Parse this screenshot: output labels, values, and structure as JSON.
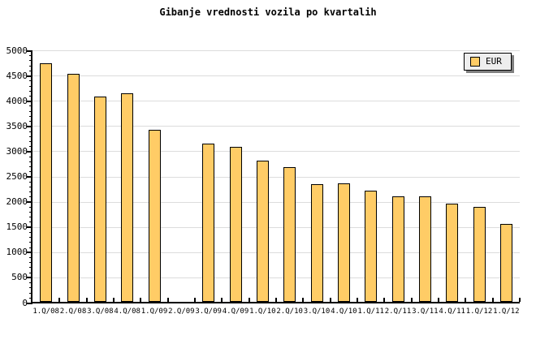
{
  "title": "Gibanje vrednosti vozila po kvartalih",
  "legend": {
    "label": "EUR",
    "position": "top-right"
  },
  "colors": {
    "background": "#FFFFFF",
    "bar_fill": "#FFCC66",
    "bar_border": "#000000",
    "grid": "#DCDCDC",
    "axis": "#000000",
    "text": "#000000",
    "legend_bg": "#EEEEEE",
    "legend_shadow": "#808080"
  },
  "chart_data": {
    "type": "bar",
    "title": "Gibanje vrednosti vozila po kvartalih",
    "categories": [
      "1.Q/08",
      "2.Q/08",
      "3.Q/08",
      "4.Q/08",
      "1.Q/09",
      "2.Q/09",
      "3.Q/09",
      "4.Q/09",
      "1.Q/10",
      "2.Q/10",
      "3.Q/10",
      "4.Q/10",
      "1.Q/11",
      "2.Q/11",
      "3.Q/11",
      "4.Q/11",
      "1.Q/12",
      "1.Q/12"
    ],
    "series": [
      {
        "name": "EUR",
        "values": [
          4750,
          4540,
          4090,
          4150,
          3430,
          null,
          3160,
          3100,
          2820,
          2690,
          2360,
          2370,
          2230,
          2110,
          2120,
          1970,
          1900,
          1560
        ]
      }
    ],
    "xlabel": "",
    "ylabel": "",
    "ylim": [
      0,
      5000
    ],
    "ytick_step": 500,
    "y_minor_tick_step": 100,
    "ytick_labels": [
      "0",
      "500",
      "1000",
      "1500",
      "2000",
      "2500",
      "3000",
      "3500",
      "4000",
      "4500",
      "5000"
    ],
    "grid": "horizontal",
    "legend_position": "top-right",
    "note": "2.Q/09 has no bar (missing value)"
  }
}
